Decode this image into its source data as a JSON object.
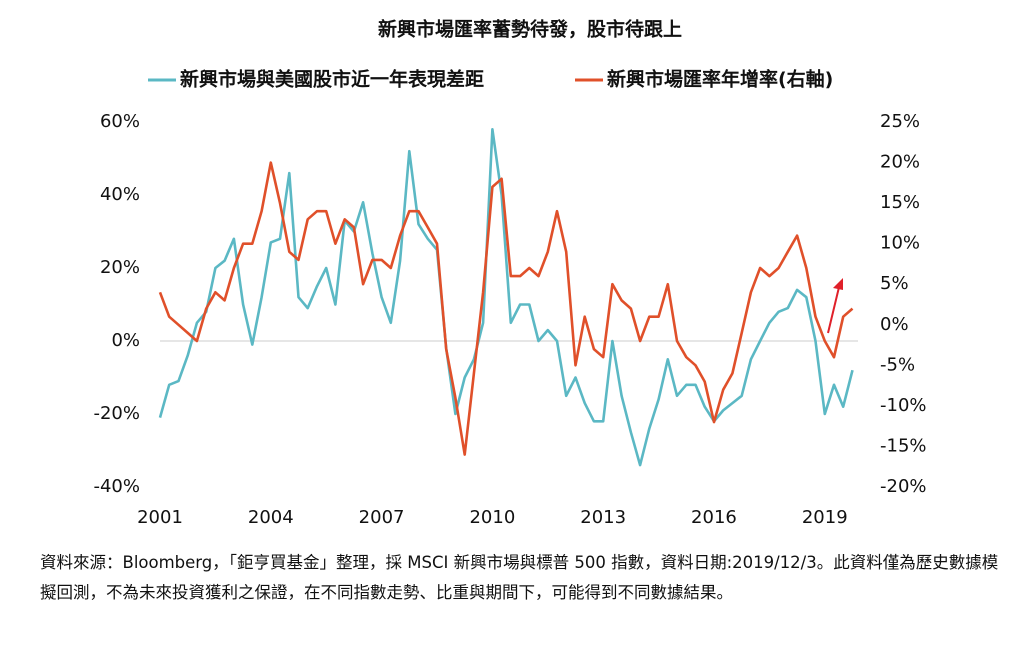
{
  "chart_data": {
    "type": "line",
    "title": "新興市場匯率蓄勢待發，股市待跟上",
    "note": "資料來源：Bloomberg，「鉅亨買基金」整理，採 MSCI 新興市場與標普 500 指數，資料日期:2019/12/3。此資料僅為歷史數據模擬回測，不為未來投資獲利之保證，在不同指數走勢、比重與期間下，可能得到不同數據結果。",
    "x": [
      2001,
      2001.25,
      2001.5,
      2001.75,
      2002,
      2002.25,
      2002.5,
      2002.75,
      2003,
      2003.25,
      2003.5,
      2003.75,
      2004,
      2004.25,
      2004.5,
      2004.75,
      2005,
      2005.25,
      2005.5,
      2005.75,
      2006,
      2006.25,
      2006.5,
      2006.75,
      2007,
      2007.25,
      2007.5,
      2007.75,
      2008,
      2008.25,
      2008.5,
      2008.75,
      2009,
      2009.25,
      2009.5,
      2009.75,
      2010,
      2010.25,
      2010.5,
      2010.75,
      2011,
      2011.25,
      2011.5,
      2011.75,
      2012,
      2012.25,
      2012.5,
      2012.75,
      2013,
      2013.25,
      2013.5,
      2013.75,
      2014,
      2014.25,
      2014.5,
      2014.75,
      2015,
      2015.25,
      2015.5,
      2015.75,
      2016,
      2016.25,
      2016.5,
      2016.75,
      2017,
      2017.25,
      2017.5,
      2017.75,
      2018,
      2018.25,
      2018.5,
      2018.75,
      2019,
      2019.25,
      2019.5,
      2019.75
    ],
    "xlim": [
      2001,
      2019.9
    ],
    "xticks": [
      2001,
      2004,
      2007,
      2010,
      2013,
      2016,
      2019
    ],
    "ylim": [
      -40,
      60
    ],
    "yticks": [
      {
        "value": -40,
        "label": "-40%"
      },
      {
        "value": -20,
        "label": "-20%"
      },
      {
        "value": 0,
        "label": "0%"
      },
      {
        "value": 20,
        "label": "20%"
      },
      {
        "value": 40,
        "label": "40%"
      },
      {
        "value": 60,
        "label": "60%"
      }
    ],
    "y2lim": [
      -20,
      25
    ],
    "y2ticks": [
      {
        "value": -20,
        "label": "-20%"
      },
      {
        "value": -15,
        "label": "-15%"
      },
      {
        "value": -10,
        "label": "-10%"
      },
      {
        "value": -5,
        "label": "-5%"
      },
      {
        "value": 0,
        "label": "0%"
      },
      {
        "value": 5,
        "label": "5%"
      },
      {
        "value": 10,
        "label": "10%"
      },
      {
        "value": 15,
        "label": "15%"
      },
      {
        "value": 20,
        "label": "20%"
      },
      {
        "value": 25,
        "label": "25%"
      }
    ],
    "series": [
      {
        "name": "新興市場與美國股市近一年表現差距",
        "color": "#5bb8c4",
        "values": [
          -21,
          -12,
          -11,
          -4,
          5,
          8,
          20,
          22,
          28,
          10,
          -1,
          12,
          27,
          28,
          46,
          12,
          9,
          15,
          20,
          10,
          33,
          30,
          38,
          24,
          12,
          5,
          22,
          52,
          32,
          28,
          25,
          -2,
          -20,
          -10,
          -5,
          5,
          58,
          40,
          5,
          10,
          10,
          0,
          3,
          0,
          -15,
          -10,
          -17,
          -22,
          -22,
          0,
          -15,
          -25,
          -34,
          -24,
          -16,
          -5,
          -15,
          -12,
          -12,
          -18,
          -22,
          -19,
          -17,
          -15,
          -5,
          0,
          5,
          8,
          9,
          14,
          12,
          0,
          -20,
          -12,
          -18,
          -8
        ]
      },
      {
        "name": "新興市場匯率年增率(右軸)",
        "color": "#e0502a",
        "axis": "y2",
        "values": [
          4,
          1,
          0,
          -1,
          -2,
          2,
          4,
          3,
          7,
          10,
          10,
          14,
          20,
          15,
          9,
          8,
          13,
          14,
          14,
          10,
          13,
          12,
          5,
          8,
          8,
          7,
          11,
          14,
          14,
          12,
          10,
          -3,
          -9,
          -16,
          -6,
          4,
          17,
          18,
          6,
          6,
          7,
          6,
          9,
          14,
          9,
          -5,
          1,
          -3,
          -4,
          5,
          3,
          2,
          -2,
          1,
          1,
          5,
          -2,
          -4,
          -5,
          -7,
          -12,
          -8,
          -6,
          -1,
          4,
          7,
          6,
          7,
          9,
          11,
          7,
          1,
          -2,
          -4,
          1,
          2
        ]
      }
    ]
  }
}
